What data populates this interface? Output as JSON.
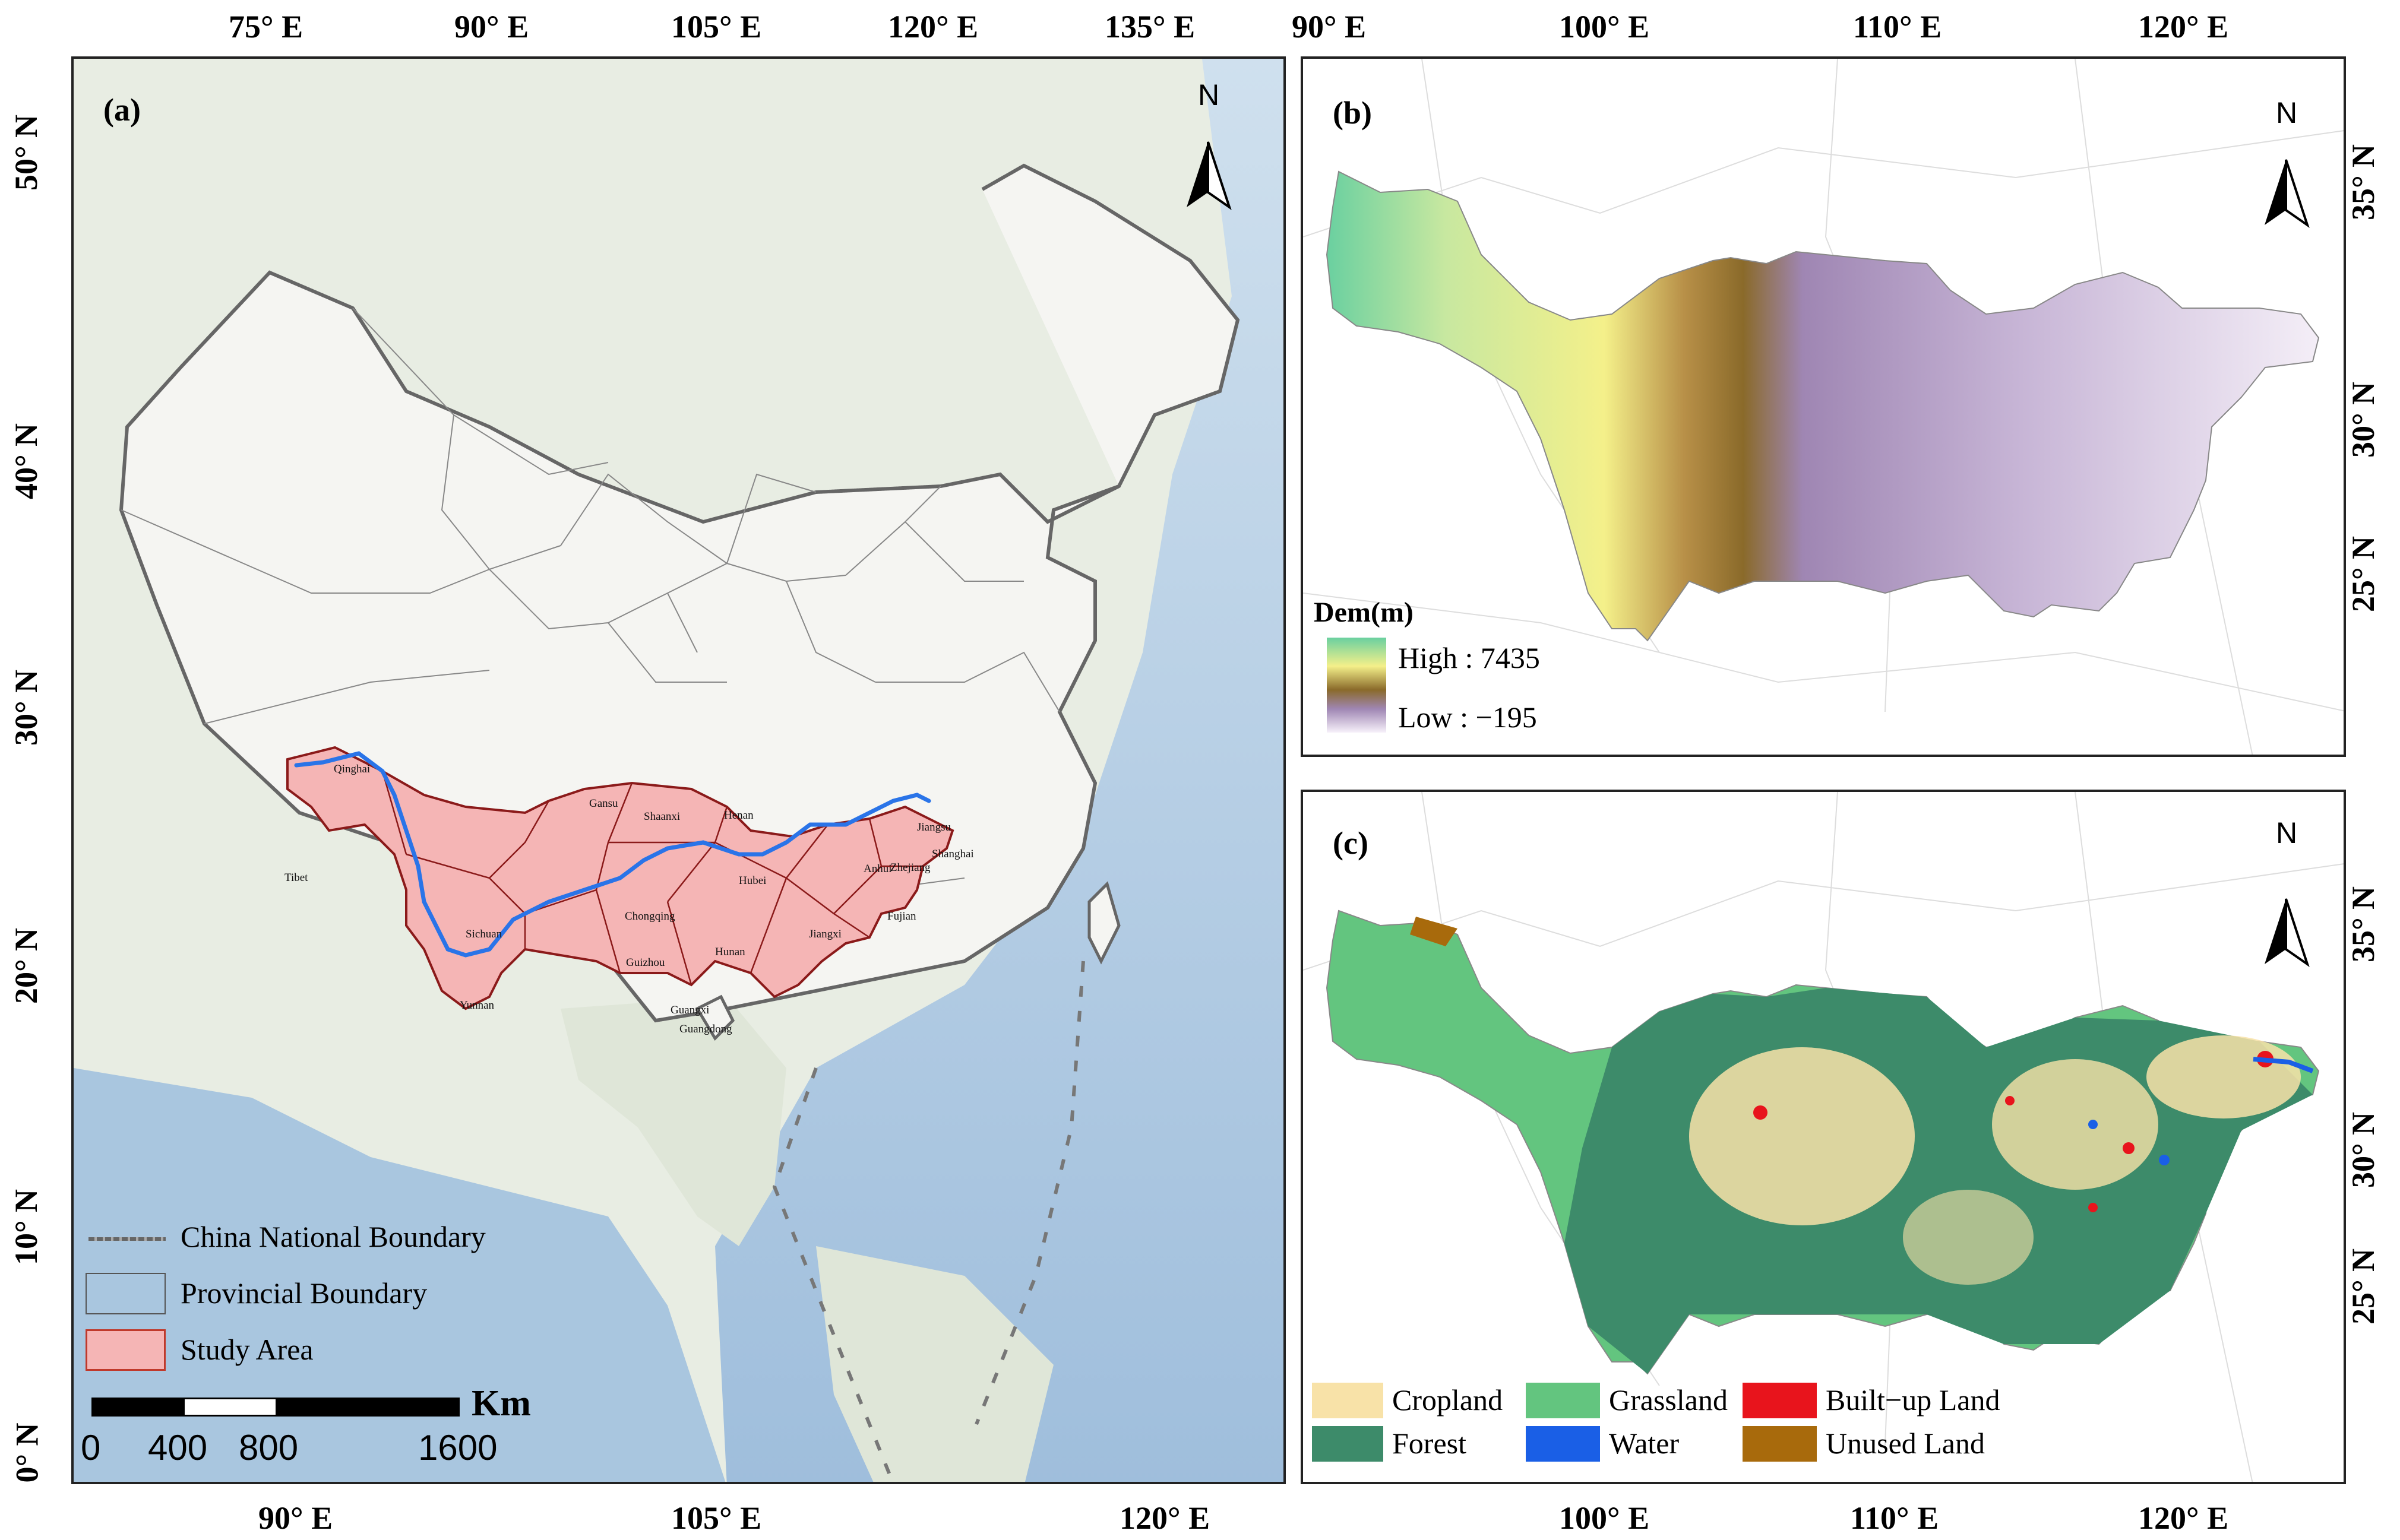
{
  "panels": {
    "a": {
      "label": "(a)",
      "top_ticks": [
        "75° E",
        "90° E",
        "105° E",
        "120° E",
        "135° E"
      ],
      "bottom_ticks": [
        "90° E",
        "105° E",
        "120° E"
      ],
      "left_ticks": [
        "50° N",
        "40° N",
        "30° N",
        "20° N",
        "10° N",
        "0° N"
      ],
      "north": "N",
      "provinces": [
        "Qinghai",
        "Gansu",
        "Shaanxi",
        "Henan",
        "Jiangsu",
        "Shanghai",
        "Tibet",
        "Hubei",
        "Anhui",
        "Zhejiang",
        "Chongqing",
        "Sichuan",
        "Guizhou",
        "Hunan",
        "Jiangxi",
        "Fujian",
        "Yunnan",
        "Guangxi",
        "Guangdong"
      ],
      "legend": {
        "national": "China National Boundary",
        "provincial": "Provincial Boundary",
        "study": "Study Area"
      },
      "scale": {
        "unit": "Km",
        "labels": [
          "0",
          "400",
          "800",
          "1600"
        ]
      }
    },
    "b": {
      "label": "(b)",
      "top_ticks": [
        "90° E",
        "100° E",
        "110° E",
        "120° E"
      ],
      "right_ticks": [
        "35° N",
        "30° N",
        "25° N"
      ],
      "north": "N",
      "legend": {
        "title": "Dem(m)",
        "high": "High : 7435",
        "low": "Low : −195"
      }
    },
    "c": {
      "label": "(c)",
      "bottom_ticks": [
        "100° E",
        "110° E",
        "120° E"
      ],
      "right_ticks": [
        "35° N",
        "30° N",
        "25° N"
      ],
      "north": "N",
      "legend": [
        {
          "label": "Cropland",
          "color": "#f8e2a8"
        },
        {
          "label": "Grassland",
          "color": "#63c57f"
        },
        {
          "label": "Built−up Land",
          "color": "#e8141c"
        },
        {
          "label": "Forest",
          "color": "#3d8b6a"
        },
        {
          "label": "Water",
          "color": "#1a5fe6"
        },
        {
          "label": "Unused Land",
          "color": "#a86a0c"
        }
      ]
    }
  },
  "colors": {
    "study_fill": "#f5b5b5",
    "study_border": "#8b1a1a",
    "river": "#2a74e8",
    "sea": "#b9d0e6",
    "land": "#ebefe7"
  }
}
